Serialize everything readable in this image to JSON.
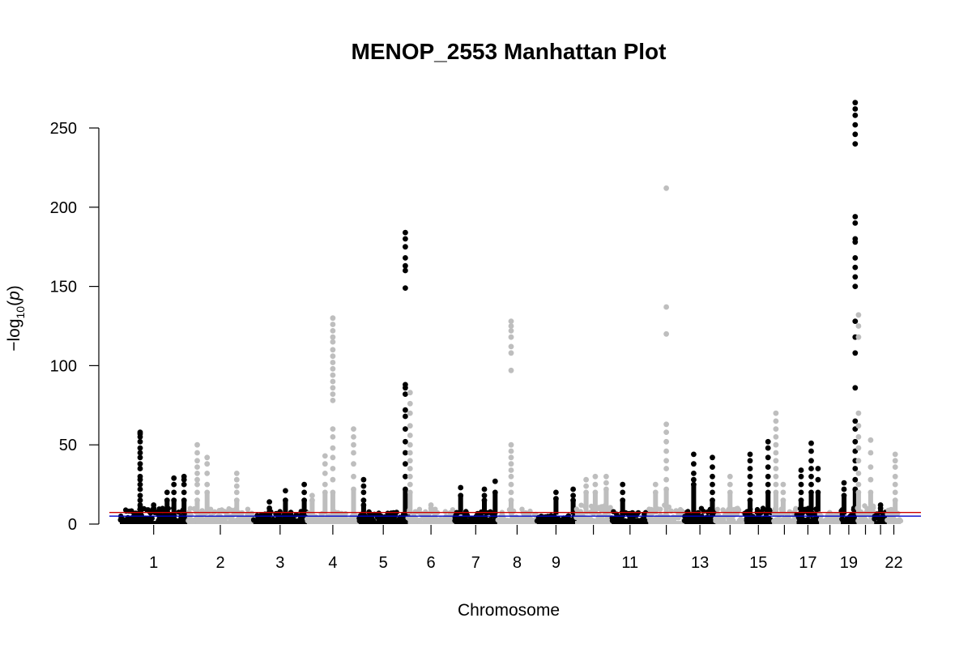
{
  "chart_data": {
    "type": "scatter",
    "title": "MENOP_2553 Manhattan Plot",
    "xlabel": "Chromosome",
    "ylabel": "−log10(p)",
    "ylim": [
      0,
      270
    ],
    "yticks": [
      0,
      50,
      100,
      150,
      200,
      250
    ],
    "grid": false,
    "colors": [
      "#000000",
      "#bebebe"
    ],
    "threshold_lines": [
      {
        "y": 7.3,
        "color": "#cc0000"
      },
      {
        "y": 5.0,
        "color": "#0000cc"
      }
    ],
    "chromosomes": [
      {
        "chr": 1,
        "label": "1",
        "baseline_max": 10,
        "points": [
          {
            "x": 0.3,
            "y": [
              58,
              57,
              55,
              52,
              48,
              45,
              42,
              38,
              35,
              30,
              28,
              25,
              22,
              18,
              15,
              12
            ]
          },
          {
            "x": 0.5,
            "y": [
              12,
              10
            ]
          },
          {
            "x": 0.7,
            "y": [
              20,
              15
            ]
          },
          {
            "x": 0.8,
            "y": [
              29,
              25,
              20,
              15
            ]
          },
          {
            "x": 0.95,
            "y": [
              30,
              28,
              25,
              20,
              15
            ]
          }
        ]
      },
      {
        "chr": 2,
        "label": "2",
        "baseline_max": 10,
        "points": [
          {
            "x": 0.15,
            "y": [
              50,
              45,
              40,
              36,
              32,
              28,
              25,
              20,
              15
            ]
          },
          {
            "x": 0.3,
            "y": [
              42,
              38,
              32,
              25,
              20
            ]
          },
          {
            "x": 0.75,
            "y": [
              32,
              28,
              24,
              20,
              15
            ]
          }
        ]
      },
      {
        "chr": 3,
        "label": "3",
        "baseline_max": 8,
        "points": [
          {
            "x": 0.3,
            "y": [
              14,
              10
            ]
          },
          {
            "x": 0.6,
            "y": [
              21,
              15
            ]
          },
          {
            "x": 0.95,
            "y": [
              25,
              20,
              15
            ]
          }
        ]
      },
      {
        "chr": 4,
        "label": "4",
        "baseline_max": 8,
        "points": [
          {
            "x": 0.1,
            "y": [
              18,
              15
            ]
          },
          {
            "x": 0.35,
            "y": [
              43,
              38,
              32,
              25,
              20
            ]
          },
          {
            "x": 0.5,
            "y": [
              130,
              126,
              122,
              118,
              115,
              110,
              106,
              102,
              98,
              94,
              90,
              86,
              82,
              78,
              60,
              55,
              48,
              42,
              35,
              28,
              20
            ]
          },
          {
            "x": 0.9,
            "y": [
              60,
              55,
              50,
              45,
              38,
              30,
              22
            ]
          }
        ]
      },
      {
        "chr": 5,
        "label": "5",
        "baseline_max": 8,
        "points": [
          {
            "x": 0.1,
            "y": [
              28,
              24,
              20,
              15,
              12
            ]
          },
          {
            "x": 0.95,
            "y": [
              184,
              180,
              175,
              168,
              163,
              160,
              149,
              88,
              86,
              82,
              72,
              68,
              60,
              52,
              45,
              38,
              30,
              22
            ]
          }
        ]
      },
      {
        "chr": 6,
        "label": "6",
        "baseline_max": 10,
        "points": [
          {
            "x": 0.05,
            "y": [
              83,
              76,
              70,
              62,
              56,
              50,
              45,
              40,
              35,
              30,
              25,
              20
            ]
          },
          {
            "x": 0.5,
            "y": [
              12,
              10
            ]
          }
        ]
      },
      {
        "chr": 7,
        "label": "7",
        "baseline_max": 8,
        "points": [
          {
            "x": 0.15,
            "y": [
              23,
              18
            ]
          },
          {
            "x": 0.7,
            "y": [
              22,
              18,
              15
            ]
          },
          {
            "x": 0.95,
            "y": [
              27,
              20
            ]
          }
        ]
      },
      {
        "chr": 8,
        "label": "8",
        "baseline_max": 10,
        "points": [
          {
            "x": 0.35,
            "y": [
              128,
              125,
              122,
              118,
              112,
              108,
              97,
              50,
              46,
              42,
              38,
              34,
              30,
              25,
              20,
              15
            ]
          }
        ]
      },
      {
        "chr": 9,
        "label": "9",
        "baseline_max": 6,
        "points": [
          {
            "x": 0.5,
            "y": [
              20,
              16
            ]
          },
          {
            "x": 0.95,
            "y": [
              22,
              18,
              15
            ]
          }
        ]
      },
      {
        "chr": 10,
        "label": "",
        "baseline_max": 12,
        "points": [
          {
            "x": 0.3,
            "y": [
              28,
              24,
              20
            ]
          },
          {
            "x": 0.55,
            "y": [
              30,
              25,
              20
            ]
          },
          {
            "x": 0.85,
            "y": [
              30,
              26,
              22
            ]
          }
        ]
      },
      {
        "chr": 11,
        "label": "11",
        "baseline_max": 8,
        "points": [
          {
            "x": 0.3,
            "y": [
              25,
              20,
              15
            ]
          }
        ]
      },
      {
        "chr": 12,
        "label": "",
        "baseline_max": 12,
        "points": [
          {
            "x": 0.2,
            "y": [
              25,
              20
            ]
          },
          {
            "x": 0.5,
            "y": [
              212,
              137,
              120,
              63,
              58,
              52,
              46,
              40,
              35,
              28,
              22
            ]
          }
        ]
      },
      {
        "chr": 13,
        "label": "13",
        "baseline_max": 10,
        "points": [
          {
            "x": 0.3,
            "y": [
              44,
              38,
              32,
              28,
              25
            ]
          },
          {
            "x": 0.9,
            "y": [
              42,
              36,
              30,
              25,
              20,
              15
            ]
          }
        ]
      },
      {
        "chr": 14,
        "label": "",
        "baseline_max": 10,
        "points": [
          {
            "x": 0.5,
            "y": [
              30,
              25,
              20
            ]
          }
        ]
      },
      {
        "chr": 15,
        "label": "15",
        "baseline_max": 10,
        "points": [
          {
            "x": 0.2,
            "y": [
              44,
              40,
              35,
              30,
              25,
              20,
              15
            ]
          },
          {
            "x": 0.85,
            "y": [
              52,
              48,
              42,
              36,
              30,
              25,
              20
            ]
          }
        ]
      },
      {
        "chr": 16,
        "label": "",
        "baseline_max": 10,
        "points": [
          {
            "x": 0.15,
            "y": [
              70,
              65,
              60,
              55,
              50,
              45,
              40,
              35,
              30,
              25,
              20
            ]
          },
          {
            "x": 0.45,
            "y": [
              25,
              20,
              15
            ]
          }
        ]
      },
      {
        "chr": 17,
        "label": "17",
        "baseline_max": 10,
        "points": [
          {
            "x": 0.2,
            "y": [
              34,
              30,
              25,
              20,
              15
            ]
          },
          {
            "x": 0.65,
            "y": [
              51,
              46,
              40,
              35,
              30,
              25,
              20
            ]
          },
          {
            "x": 0.95,
            "y": [
              35,
              28,
              20
            ]
          }
        ]
      },
      {
        "chr": 18,
        "label": "",
        "baseline_max": 8,
        "points": []
      },
      {
        "chr": 19,
        "label": "19",
        "baseline_max": 12,
        "points": [
          {
            "x": 0.2,
            "y": [
              26,
              22,
              18
            ]
          },
          {
            "x": 0.9,
            "y": [
              266,
              262,
              258,
              252,
              246,
              240,
              194,
              190,
              180,
              178,
              168,
              162,
              156,
              150,
              128,
              118,
              108,
              86,
              65,
              60,
              52,
              46,
              40,
              35,
              28,
              22
            ]
          }
        ]
      },
      {
        "chr": 20,
        "label": "",
        "baseline_max": 12,
        "points": [
          {
            "x": 0.1,
            "y": [
              132,
              125,
              118,
              70,
              62,
              55,
              48,
              40,
              32,
              25,
              20
            ]
          },
          {
            "x": 0.8,
            "y": [
              53,
              45,
              36,
              28,
              20
            ]
          }
        ]
      },
      {
        "chr": 21,
        "label": "",
        "baseline_max": 8,
        "points": [
          {
            "x": 0.5,
            "y": [
              12,
              10
            ]
          }
        ]
      },
      {
        "chr": 22,
        "label": "22",
        "baseline_max": 10,
        "points": [
          {
            "x": 0.6,
            "y": [
              44,
              40,
              36,
              30,
              25,
              20,
              15
            ]
          }
        ]
      }
    ]
  }
}
